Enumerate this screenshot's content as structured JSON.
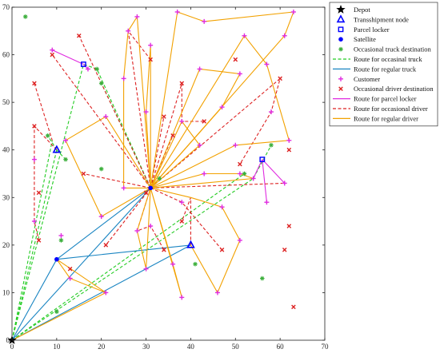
{
  "chart_data": {
    "type": "scatter",
    "xlim": [
      0,
      70
    ],
    "ylim": [
      0,
      70
    ],
    "xticks": [
      "0",
      "10",
      "20",
      "30",
      "40",
      "50",
      "60",
      "70"
    ],
    "yticks": [
      "0",
      "10",
      "20",
      "30",
      "40",
      "50",
      "60",
      "70"
    ],
    "grid": false,
    "legend_position": "top-right, outside plot",
    "depot": [
      0,
      0
    ],
    "satellites": [
      [
        10,
        17
      ],
      [
        31,
        32
      ]
    ],
    "transshipment_nodes": [
      [
        10,
        40
      ],
      [
        40,
        20
      ]
    ],
    "parcel_lockers": [
      [
        16,
        58
      ],
      [
        56,
        38
      ]
    ],
    "customers": [
      [
        9,
        61
      ],
      [
        17,
        57
      ],
      [
        28,
        68
      ],
      [
        37,
        69
      ],
      [
        43,
        67
      ],
      [
        63,
        69
      ],
      [
        61,
        64
      ],
      [
        52,
        64
      ],
      [
        57,
        58
      ],
      [
        62,
        42
      ],
      [
        61,
        33
      ],
      [
        57,
        29
      ],
      [
        50,
        41
      ],
      [
        42,
        41
      ],
      [
        42,
        57
      ],
      [
        47,
        49
      ],
      [
        51,
        56
      ],
      [
        58,
        48
      ],
      [
        38,
        46
      ],
      [
        30,
        48
      ],
      [
        31,
        62
      ],
      [
        26,
        65
      ],
      [
        25,
        55
      ],
      [
        21,
        47
      ],
      [
        12,
        42
      ],
      [
        5,
        38
      ],
      [
        5,
        25
      ],
      [
        11,
        22
      ],
      [
        20,
        26
      ],
      [
        25,
        32
      ],
      [
        28,
        23
      ],
      [
        30,
        15
      ],
      [
        38,
        9
      ],
      [
        36,
        16
      ],
      [
        31,
        24
      ],
      [
        38,
        29
      ],
      [
        43,
        35
      ],
      [
        51,
        35
      ],
      [
        54,
        34
      ],
      [
        47,
        28
      ],
      [
        46,
        10
      ],
      [
        51,
        21
      ],
      [
        21,
        10
      ],
      [
        13,
        13
      ]
    ],
    "occasional_truck_destinations": [
      [
        3,
        68
      ],
      [
        19,
        57
      ],
      [
        20,
        54
      ],
      [
        8,
        43
      ],
      [
        12,
        38
      ],
      [
        20,
        36
      ],
      [
        11,
        21
      ],
      [
        10,
        6
      ],
      [
        33,
        34
      ],
      [
        41,
        16
      ],
      [
        56,
        13
      ],
      [
        52,
        35
      ],
      [
        58,
        41
      ]
    ],
    "occasional_driver_destinations": [
      [
        15,
        64
      ],
      [
        9,
        60
      ],
      [
        5,
        54
      ],
      [
        5,
        45
      ],
      [
        6,
        31
      ],
      [
        6,
        21
      ],
      [
        16,
        35
      ],
      [
        21,
        20
      ],
      [
        13,
        15
      ],
      [
        30,
        31
      ],
      [
        31,
        59
      ],
      [
        34,
        47
      ],
      [
        38,
        54
      ],
      [
        36,
        43
      ],
      [
        38,
        25
      ],
      [
        34,
        19
      ],
      [
        43,
        46
      ],
      [
        50,
        59
      ],
      [
        51,
        37
      ],
      [
        47,
        19
      ],
      [
        60,
        55
      ],
      [
        62,
        40
      ],
      [
        61,
        19
      ],
      [
        62,
        24
      ],
      [
        63,
        7
      ]
    ],
    "routes": [
      {
        "name": "Route for occasinal truck",
        "color": "#22cc22",
        "dash": true,
        "paths": [
          [
            [
              0,
              0
            ],
            [
              10,
              40
            ]
          ],
          [
            [
              10,
              40
            ],
            [
              8,
              43
            ]
          ],
          [
            [
              10,
              40
            ],
            [
              12,
              38
            ]
          ],
          [
            [
              0,
              0
            ],
            [
              16,
              58
            ],
            [
              19,
              57
            ],
            [
              31,
              32
            ]
          ],
          [
            [
              31,
              32
            ],
            [
              20,
              54
            ]
          ],
          [
            [
              0,
              0
            ],
            [
              9,
              42
            ]
          ],
          [
            [
              0,
              0
            ],
            [
              54,
              34
            ],
            [
              58,
              41
            ]
          ],
          [
            [
              0,
              0
            ],
            [
              52,
              35
            ]
          ],
          [
            [
              31,
              32
            ],
            [
              33,
              34
            ]
          ]
        ]
      },
      {
        "name": "Route for regular truck",
        "color": "#1a85c2",
        "dash": false,
        "paths": [
          [
            [
              0,
              0
            ],
            [
              10,
              17
            ],
            [
              40,
              20
            ]
          ],
          [
            [
              0,
              0
            ],
            [
              40,
              20
            ]
          ],
          [
            [
              0,
              0
            ],
            [
              31,
              32
            ]
          ],
          [
            [
              10,
              17
            ],
            [
              31,
              32
            ]
          ]
        ]
      },
      {
        "name": "Route for parcel locker",
        "color": "#e02ce0",
        "dash": false,
        "paths": [
          [
            [
              9,
              61
            ],
            [
              16,
              58
            ]
          ],
          [
            [
              16,
              58
            ],
            [
              17,
              57
            ]
          ],
          [
            [
              56,
              38
            ],
            [
              54,
              34
            ]
          ],
          [
            [
              56,
              38
            ],
            [
              57,
              29
            ]
          ],
          [
            [
              56,
              38
            ],
            [
              61,
              33
            ]
          ]
        ]
      },
      {
        "name": "Route for occasional driver",
        "color": "#dd2222",
        "dash": true,
        "paths": [
          [
            [
              31,
              32
            ],
            [
              15,
              64
            ]
          ],
          [
            [
              31,
              32
            ],
            [
              9,
              60
            ]
          ],
          [
            [
              31,
              32
            ],
            [
              26,
              65
            ],
            [
              31,
              59
            ]
          ],
          [
            [
              31,
              32
            ],
            [
              34,
              47
            ]
          ],
          [
            [
              31,
              32
            ],
            [
              38,
              54
            ],
            [
              38,
              46
            ],
            [
              43,
              46
            ]
          ],
          [
            [
              31,
              32
            ],
            [
              36,
              43
            ]
          ],
          [
            [
              31,
              32
            ],
            [
              28,
              23
            ],
            [
              31,
              24
            ],
            [
              34,
              19
            ]
          ],
          [
            [
              31,
              32
            ],
            [
              60,
              55
            ],
            [
              58,
              48
            ],
            [
              51,
              37
            ]
          ],
          [
            [
              31,
              32
            ],
            [
              61,
              33
            ]
          ],
          [
            [
              40,
              20
            ],
            [
              40,
              30
            ],
            [
              38,
              25
            ]
          ],
          [
            [
              10,
              40
            ],
            [
              5,
              45
            ],
            [
              5,
              25
            ],
            [
              6,
              21
            ]
          ],
          [
            [
              5,
              54
            ],
            [
              9,
              42
            ]
          ],
          [
            [
              31,
              32
            ],
            [
              38,
              29
            ],
            [
              47,
              19
            ]
          ],
          [
            [
              31,
              32
            ],
            [
              21,
              20
            ]
          ],
          [
            [
              31,
              32
            ],
            [
              30,
              31
            ]
          ],
          [
            [
              31,
              32
            ],
            [
              16,
              35
            ]
          ]
        ]
      },
      {
        "name": "Route for regular driver",
        "color": "#f2a100",
        "dash": false,
        "paths": [
          [
            [
              31,
              32
            ],
            [
              28,
              68
            ],
            [
              26,
              65
            ],
            [
              25,
              55
            ],
            [
              25,
              32
            ],
            [
              31,
              32
            ]
          ],
          [
            [
              31,
              32
            ],
            [
              37,
              69
            ],
            [
              43,
              67
            ],
            [
              63,
              69
            ],
            [
              61,
              64
            ],
            [
              31,
              32
            ]
          ],
          [
            [
              31,
              32
            ],
            [
              52,
              64
            ],
            [
              57,
              58
            ],
            [
              62,
              42
            ],
            [
              50,
              41
            ],
            [
              31,
              32
            ]
          ],
          [
            [
              31,
              32
            ],
            [
              42,
              57
            ],
            [
              51,
              56
            ],
            [
              47,
              49
            ],
            [
              31,
              32
            ]
          ],
          [
            [
              31,
              32
            ],
            [
              30,
              48
            ],
            [
              31,
              62
            ],
            [
              31,
              32
            ]
          ],
          [
            [
              31,
              32
            ],
            [
              38,
              46
            ],
            [
              42,
              41
            ],
            [
              31,
              32
            ]
          ],
          [
            [
              31,
              32
            ],
            [
              21,
              47
            ],
            [
              12,
              42
            ],
            [
              20,
              26
            ],
            [
              31,
              32
            ]
          ],
          [
            [
              31,
              32
            ],
            [
              36,
              16
            ],
            [
              38,
              9
            ],
            [
              31,
              32
            ]
          ],
          [
            [
              31,
              32
            ],
            [
              30,
              15
            ],
            [
              28,
              23
            ],
            [
              31,
              32
            ]
          ],
          [
            [
              31,
              32
            ],
            [
              43,
              35
            ],
            [
              51,
              35
            ],
            [
              54,
              34
            ],
            [
              31,
              32
            ]
          ],
          [
            [
              31,
              32
            ],
            [
              40,
              30
            ],
            [
              47,
              28
            ],
            [
              51,
              21
            ],
            [
              46,
              10
            ],
            [
              40,
              20
            ]
          ],
          [
            [
              10,
              17
            ],
            [
              13,
              13
            ],
            [
              21,
              10
            ],
            [
              10,
              17
            ]
          ],
          [
            [
              0,
              0
            ],
            [
              21,
              10
            ]
          ]
        ]
      }
    ]
  },
  "legend": [
    {
      "symbol": "star",
      "color": "#000000",
      "label": "Depot"
    },
    {
      "symbol": "triangle",
      "color": "#0000ff",
      "label": "Transshipment node"
    },
    {
      "symbol": "square",
      "color": "#0000ff",
      "label": "Parcel locker"
    },
    {
      "symbol": "dot",
      "color": "#0000ff",
      "label": "Satellite"
    },
    {
      "symbol": "asterisk",
      "color": "#3caf3c",
      "label": "Occasional truck destination"
    },
    {
      "symbol": "dash",
      "color": "#22cc22",
      "label": "Route for occasinal truck"
    },
    {
      "symbol": "line",
      "color": "#1a85c2",
      "label": "Route for regular truck"
    },
    {
      "symbol": "plus",
      "color": "#e02ce0",
      "label": "Customer"
    },
    {
      "symbol": "cross",
      "color": "#dd2222",
      "label": "Occasional driver destination"
    },
    {
      "symbol": "line",
      "color": "#e02ce0",
      "label": "Route for parcel locker"
    },
    {
      "symbol": "dash",
      "color": "#dd2222",
      "label": "Route for occasional driver"
    },
    {
      "symbol": "line",
      "color": "#f2a100",
      "label": "Route for regular driver"
    }
  ]
}
